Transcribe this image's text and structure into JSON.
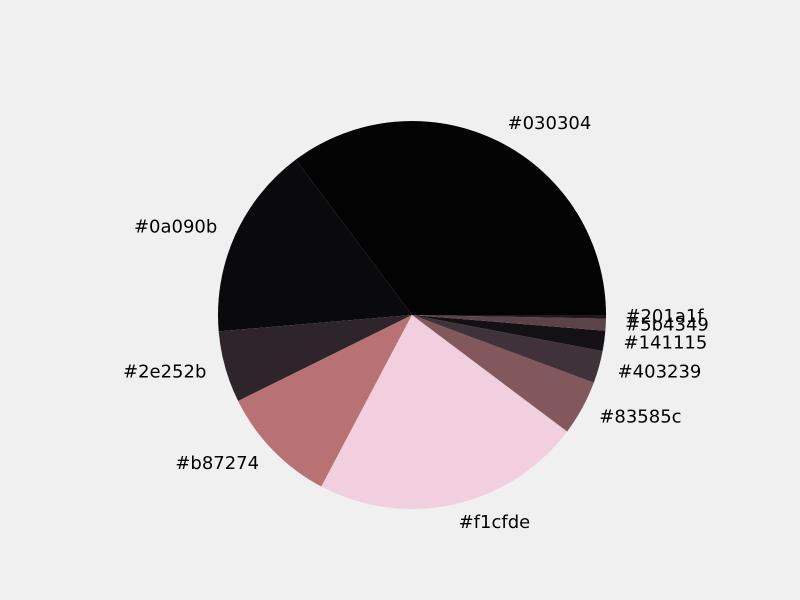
{
  "chart_data": {
    "type": "pie",
    "title": "",
    "start_angle_deg": 0,
    "direction": "clockwise-on-screen",
    "slices": [
      {
        "label": "#030304",
        "value": 35.4,
        "color": "#030304"
      },
      {
        "label": "#0a090b",
        "value": 16.2,
        "color": "#0a090b"
      },
      {
        "label": "#2e252b",
        "value": 6.0,
        "color": "#2e252b"
      },
      {
        "label": "#b87274",
        "value": 10.0,
        "color": "#b87274"
      },
      {
        "label": "#f1cfde",
        "value": 22.6,
        "color": "#f1cfde"
      },
      {
        "label": "#83585c",
        "value": 4.6,
        "color": "#83585c"
      },
      {
        "label": "#403239",
        "value": 2.7,
        "color": "#403239"
      },
      {
        "label": "#141115",
        "value": 1.7,
        "color": "#141115"
      },
      {
        "label": "#5b4349",
        "value": 1.0,
        "color": "#5b4349"
      },
      {
        "label": "#201a1f",
        "value": 0.3,
        "color": "#201a1f"
      }
    ]
  }
}
